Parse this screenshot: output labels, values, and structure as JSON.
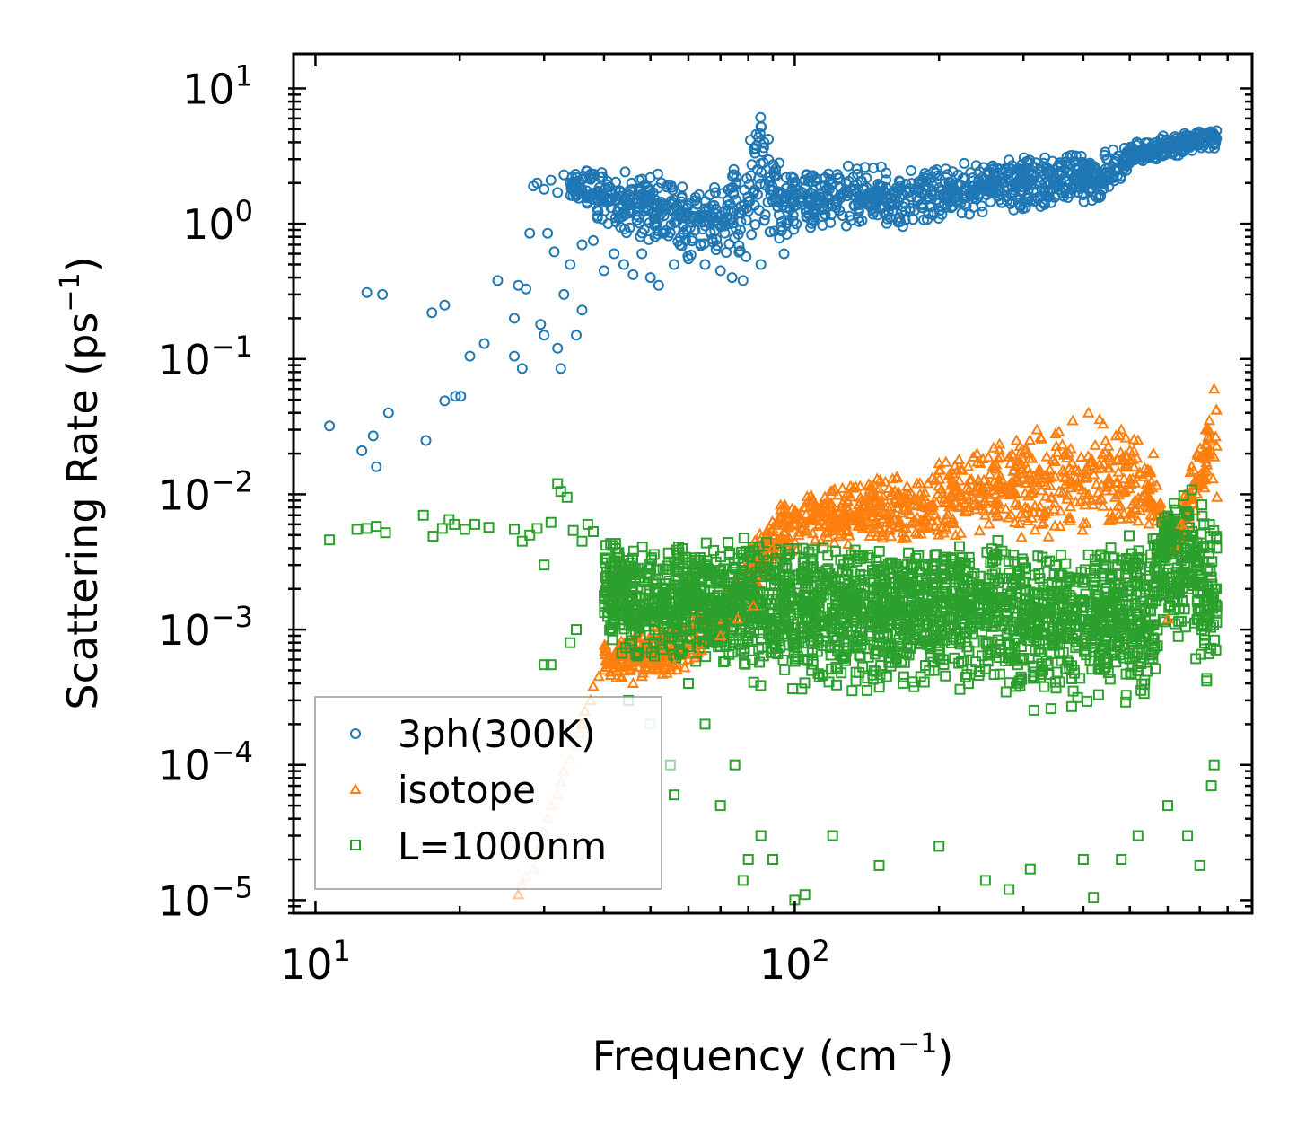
{
  "chart_data": {
    "type": "scatter",
    "title": "",
    "xlabel": "Frequency",
    "xlabel_unit": "cm",
    "xlabel_exp": "−1",
    "ylabel": "Scattering Rate",
    "ylabel_unit": "ps",
    "ylabel_exp": "−1",
    "xscale": "log",
    "yscale": "log",
    "xlim": [
      9,
      900
    ],
    "ylim": [
      8e-06,
      18
    ],
    "x_ticks": [
      {
        "value": 10,
        "base": "10",
        "exp": "1"
      },
      {
        "value": 100,
        "base": "10",
        "exp": "2"
      }
    ],
    "y_ticks": [
      {
        "value": 10,
        "base": "10",
        "exp": "1"
      },
      {
        "value": 1,
        "base": "10",
        "exp": "0"
      },
      {
        "value": 0.1,
        "base": "10",
        "exp": "−1"
      },
      {
        "value": 0.01,
        "base": "10",
        "exp": "−2"
      },
      {
        "value": 0.001,
        "base": "10",
        "exp": "−3"
      },
      {
        "value": 0.0001,
        "base": "10",
        "exp": "−4"
      },
      {
        "value": 1e-05,
        "base": "10",
        "exp": "−5"
      }
    ],
    "legend_position": "lower-left",
    "series": [
      {
        "name": "3ph(300K)",
        "marker": "circle",
        "color": "#1f77b4",
        "points": [
          [
            10.7,
            0.032
          ],
          [
            12.5,
            0.021
          ],
          [
            13.2,
            0.027
          ],
          [
            13.4,
            0.016
          ],
          [
            14.2,
            0.04
          ],
          [
            12.8,
            0.31
          ],
          [
            13.8,
            0.3
          ],
          [
            17,
            0.025
          ],
          [
            17.5,
            0.22
          ],
          [
            18.6,
            0.25
          ],
          [
            18.6,
            0.049
          ],
          [
            19.6,
            0.053
          ],
          [
            20.1,
            0.053
          ],
          [
            21,
            0.105
          ],
          [
            22.5,
            0.13
          ],
          [
            24,
            0.38
          ],
          [
            26,
            0.105
          ],
          [
            27,
            0.085
          ],
          [
            26,
            0.2
          ],
          [
            26.5,
            0.35
          ],
          [
            27.5,
            0.33
          ],
          [
            28,
            0.85
          ],
          [
            29.5,
            0.18
          ],
          [
            30,
            0.15
          ],
          [
            30.5,
            0.85
          ],
          [
            31.5,
            0.62
          ],
          [
            32,
            0.12
          ],
          [
            32.5,
            0.085
          ],
          [
            33,
            0.3
          ],
          [
            34,
            0.5
          ],
          [
            35,
            0.15
          ],
          [
            36,
            0.23
          ],
          [
            28.5,
            1.9
          ],
          [
            29,
            2.0
          ],
          [
            30,
            1.8
          ],
          [
            31,
            2.1
          ],
          [
            32,
            1.7
          ],
          [
            33,
            2.3
          ],
          [
            34,
            2.0
          ],
          [
            35,
            1.6
          ],
          [
            36,
            0.7
          ],
          [
            38,
            0.75
          ],
          [
            40,
            0.45
          ],
          [
            42,
            0.6
          ],
          [
            44,
            0.5
          ],
          [
            46,
            0.42
          ],
          [
            48,
            0.6
          ],
          [
            50,
            0.4
          ],
          [
            52,
            0.35
          ],
          [
            56,
            0.5
          ],
          [
            60,
            0.55
          ],
          [
            65,
            0.5
          ],
          [
            70,
            0.45
          ],
          [
            74,
            0.4
          ],
          [
            78,
            0.38
          ],
          [
            85,
            0.5
          ],
          [
            95,
            0.6
          ]
        ]
      },
      {
        "name": "isotope",
        "marker": "triangle",
        "color": "#ff7f0e",
        "points": [
          [
            26.5,
            1.1e-05
          ],
          [
            27,
            1.3e-05
          ],
          [
            27.5,
            1.5e-05
          ],
          [
            28.5,
            1.7e-05
          ],
          [
            29,
            2.2e-05
          ],
          [
            29.5,
            2.6e-05
          ],
          [
            30,
            3.2e-05
          ],
          [
            30.5,
            4e-05
          ],
          [
            31,
            5e-05
          ],
          [
            32,
            6e-05
          ],
          [
            32.5,
            7.5e-05
          ],
          [
            33,
            9e-05
          ],
          [
            34,
            0.00011
          ],
          [
            35,
            0.00014
          ],
          [
            35.5,
            0.00017
          ],
          [
            36,
            0.0002
          ],
          [
            36.5,
            0.00025
          ],
          [
            37.5,
            0.0003
          ],
          [
            38,
            0.00038
          ],
          [
            39,
            0.00045
          ],
          [
            40,
            0.0005
          ],
          [
            42,
            0.00055
          ],
          [
            44,
            0.0005
          ],
          [
            46,
            0.0004
          ],
          [
            48,
            0.00045
          ],
          [
            52,
            0.0005
          ],
          [
            56,
            0.00055
          ],
          [
            60,
            0.0006
          ],
          [
            64,
            0.0007
          ],
          [
            70,
            0.0009
          ],
          [
            76,
            0.0012
          ],
          [
            82,
            0.0015
          ],
          [
            90,
            0.004
          ],
          [
            100,
            0.006
          ],
          [
            110,
            0.008
          ],
          [
            120,
            0.007
          ],
          [
            130,
            0.01
          ],
          [
            140,
            0.009
          ],
          [
            150,
            0.011
          ],
          [
            160,
            0.013
          ],
          [
            170,
            0.01
          ],
          [
            180,
            0.012
          ],
          [
            200,
            0.015
          ],
          [
            220,
            0.018
          ],
          [
            240,
            0.02
          ],
          [
            260,
            0.022
          ],
          [
            290,
            0.025
          ],
          [
            320,
            0.03
          ],
          [
            350,
            0.028
          ],
          [
            380,
            0.035
          ],
          [
            410,
            0.04
          ],
          [
            440,
            0.033
          ],
          [
            480,
            0.03
          ],
          [
            520,
            0.025
          ],
          [
            560,
            0.02
          ],
          [
            600,
            0.0012
          ],
          [
            640,
            0.006
          ],
          [
            680,
            0.015
          ],
          [
            720,
            0.03
          ],
          [
            750,
            0.06
          ],
          [
            760,
            0.0095
          ]
        ]
      },
      {
        "name": "L=1000nm",
        "marker": "square",
        "color": "#2ca02c",
        "points": [
          [
            10.7,
            0.0046
          ],
          [
            12.2,
            0.0055
          ],
          [
            12.8,
            0.0056
          ],
          [
            13.4,
            0.0058
          ],
          [
            14,
            0.0052
          ],
          [
            16.8,
            0.007
          ],
          [
            17.6,
            0.0049
          ],
          [
            18.4,
            0.0056
          ],
          [
            19,
            0.0065
          ],
          [
            19.5,
            0.006
          ],
          [
            20.5,
            0.0055
          ],
          [
            21.5,
            0.006
          ],
          [
            23,
            0.0057
          ],
          [
            26,
            0.0055
          ],
          [
            27,
            0.0045
          ],
          [
            28,
            0.005
          ],
          [
            29,
            0.0056
          ],
          [
            30,
            0.003
          ],
          [
            31,
            0.0062
          ],
          [
            32,
            0.012
          ],
          [
            32.5,
            0.0105
          ],
          [
            33.5,
            0.0095
          ],
          [
            34.5,
            0.0054
          ],
          [
            36,
            0.0045
          ],
          [
            37,
            0.006
          ],
          [
            38,
            0.0053
          ],
          [
            30,
            0.00055
          ],
          [
            31,
            0.00055
          ],
          [
            34,
            0.0008
          ],
          [
            35,
            0.001
          ],
          [
            45,
            0.0003
          ],
          [
            50,
            0.0002
          ],
          [
            55,
            0.0001
          ],
          [
            56,
            6e-05
          ],
          [
            60,
            0.0004
          ],
          [
            65,
            0.0002
          ],
          [
            70,
            5e-05
          ],
          [
            75,
            0.0001
          ],
          [
            78,
            1.4e-05
          ],
          [
            80,
            2e-05
          ],
          [
            85,
            3e-05
          ],
          [
            90,
            2e-05
          ],
          [
            100,
            1e-05
          ],
          [
            105,
            1.1e-05
          ],
          [
            120,
            3e-05
          ],
          [
            150,
            1.8e-05
          ],
          [
            200,
            2.5e-05
          ],
          [
            250,
            1.4e-05
          ],
          [
            280,
            1.2e-05
          ],
          [
            310,
            1.7e-05
          ],
          [
            400,
            2e-05
          ],
          [
            420,
            1.05e-05
          ],
          [
            480,
            2e-05
          ],
          [
            520,
            3e-05
          ],
          [
            600,
            5e-05
          ],
          [
            660,
            3e-05
          ],
          [
            700,
            1.8e-05
          ],
          [
            740,
            7e-05
          ],
          [
            750,
            0.0001
          ]
        ]
      }
    ],
    "clouds": [
      {
        "series": 0,
        "band": [
          [
            34,
            1.6,
            2.6
          ],
          [
            40,
            0.9,
            2.8
          ],
          [
            50,
            0.7,
            2.5
          ],
          [
            60,
            0.55,
            2.0
          ],
          [
            70,
            0.55,
            2.0
          ],
          [
            78,
            0.5,
            3.5
          ],
          [
            85,
            0.6,
            8.0
          ],
          [
            92,
            0.7,
            4.0
          ],
          [
            100,
            0.8,
            2.6
          ],
          [
            130,
            0.9,
            3.0
          ],
          [
            160,
            0.9,
            2.6
          ],
          [
            200,
            1.0,
            2.7
          ],
          [
            260,
            1.2,
            3.2
          ],
          [
            320,
            1.2,
            3.2
          ],
          [
            380,
            1.5,
            3.5
          ],
          [
            430,
            1.3,
            3.4
          ],
          [
            500,
            2.6,
            4.0
          ],
          [
            600,
            3.0,
            4.6
          ],
          [
            700,
            3.3,
            5.0
          ],
          [
            760,
            3.6,
            5.1
          ]
        ]
      },
      {
        "series": 1,
        "band": [
          [
            40,
            0.0004,
            0.0009
          ],
          [
            55,
            0.0004,
            0.0012
          ],
          [
            70,
            0.0008,
            0.0018
          ],
          [
            80,
            0.0015,
            0.004
          ],
          [
            90,
            0.003,
            0.008
          ],
          [
            110,
            0.004,
            0.011
          ],
          [
            140,
            0.004,
            0.014
          ],
          [
            180,
            0.004,
            0.016
          ],
          [
            220,
            0.005,
            0.02
          ],
          [
            280,
            0.005,
            0.026
          ],
          [
            340,
            0.004,
            0.032
          ],
          [
            400,
            0.004,
            0.04
          ],
          [
            470,
            0.005,
            0.035
          ],
          [
            540,
            0.006,
            0.025
          ],
          [
            580,
            0.004,
            0.01
          ],
          [
            620,
            0.003,
            0.006
          ],
          [
            680,
            0.006,
            0.02
          ],
          [
            730,
            0.01,
            0.04
          ],
          [
            760,
            0.01,
            0.06
          ]
        ]
      },
      {
        "series": 2,
        "band": [
          [
            40,
            0.0007,
            0.005
          ],
          [
            50,
            0.0004,
            0.004
          ],
          [
            60,
            0.0004,
            0.005
          ],
          [
            70,
            0.0004,
            0.005
          ],
          [
            80,
            0.0003,
            0.005
          ],
          [
            100,
            0.0003,
            0.0045
          ],
          [
            140,
            0.0003,
            0.0045
          ],
          [
            200,
            0.0003,
            0.0045
          ],
          [
            260,
            0.0003,
            0.0048
          ],
          [
            330,
            0.0002,
            0.0045
          ],
          [
            400,
            0.0002,
            0.004
          ],
          [
            470,
            0.0002,
            0.005
          ],
          [
            560,
            0.0002,
            0.006
          ],
          [
            600,
            0.001,
            0.012
          ],
          [
            660,
            0.0006,
            0.012
          ],
          [
            720,
            0.0003,
            0.008
          ],
          [
            760,
            0.0003,
            0.006
          ]
        ]
      }
    ]
  }
}
